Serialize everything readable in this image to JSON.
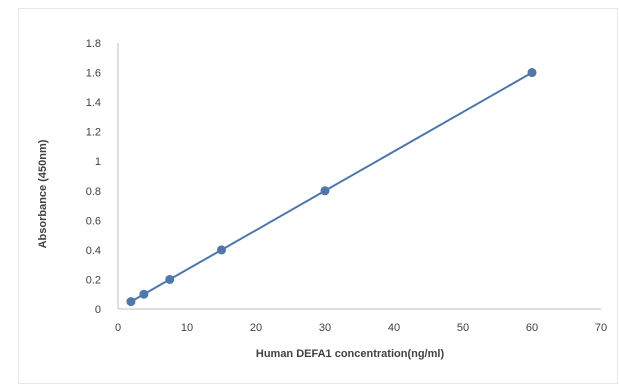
{
  "chart_data": {
    "type": "line",
    "title": "",
    "xlabel": "Human DEFA1 concentration(ng/ml)",
    "ylabel": "Absorbance (450nm)",
    "xlim": [
      0,
      70
    ],
    "ylim": [
      0,
      1.8
    ],
    "x_ticks": [
      "0",
      "10",
      "20",
      "30",
      "40",
      "50",
      "60",
      "70"
    ],
    "y_ticks": [
      "0",
      "0.2",
      "0.4",
      "0.6",
      "0.8",
      "1",
      "1.2",
      "1.4",
      "1.6",
      "1.8"
    ],
    "grid": false,
    "legend": "none",
    "series": [
      {
        "x": [
          1.875,
          3.75,
          7.5,
          15,
          30,
          60
        ],
        "y": [
          0.05,
          0.1,
          0.2,
          0.4,
          0.8,
          1.6
        ],
        "color": "#4f77aa"
      }
    ],
    "axis_color": "#bfbfbf"
  }
}
